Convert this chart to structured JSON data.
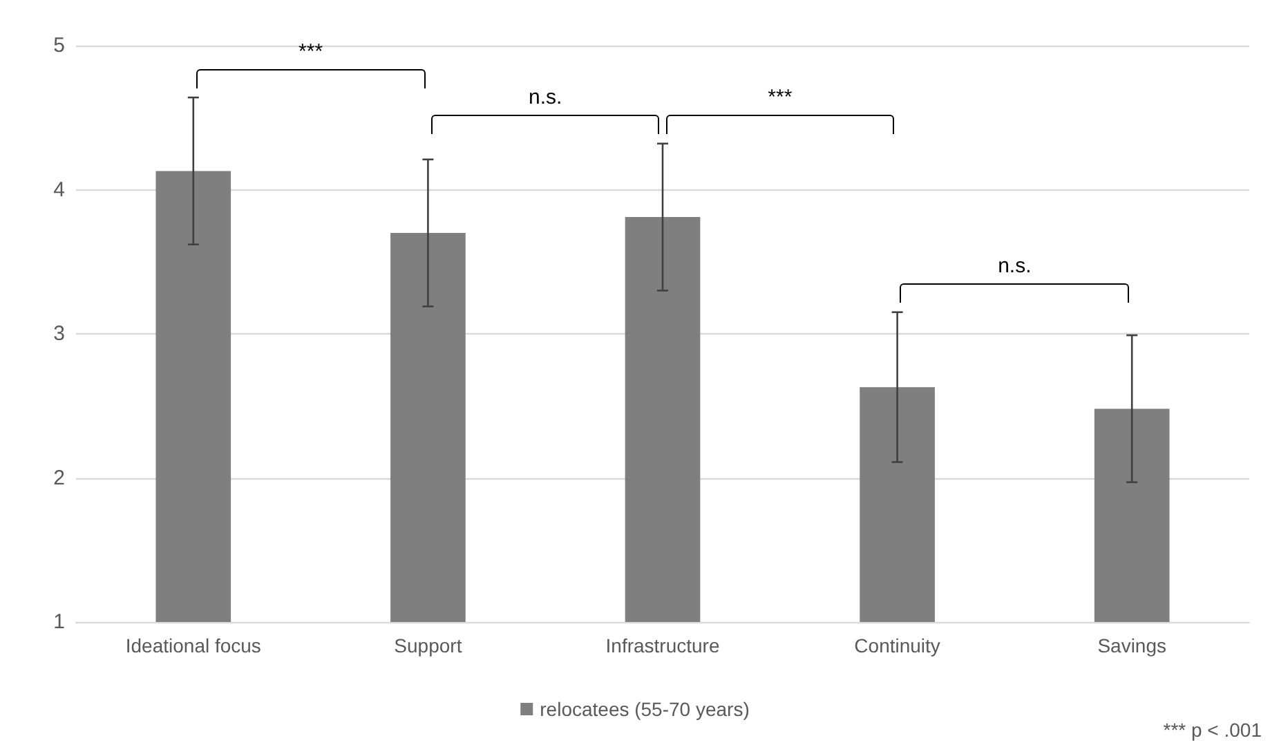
{
  "chart_data": {
    "type": "bar",
    "categories": [
      "Ideational focus",
      "Support",
      "Infrastructure",
      "Continuity",
      "Savings"
    ],
    "series": [
      {
        "name": "relocatees (55-70 years)",
        "color": "#7f7f7f",
        "values": [
          4.13,
          3.7,
          3.81,
          2.63,
          2.48
        ],
        "errors": [
          0.51,
          0.51,
          0.51,
          0.52,
          0.51
        ]
      }
    ],
    "ylim": [
      1,
      5
    ],
    "yticks": [
      1,
      2,
      3,
      4,
      5
    ],
    "grid": "y",
    "legend": "bottom",
    "annotations": [
      "***",
      "n.s.",
      "***",
      "n.s.",
      "*** p < .001"
    ]
  }
}
